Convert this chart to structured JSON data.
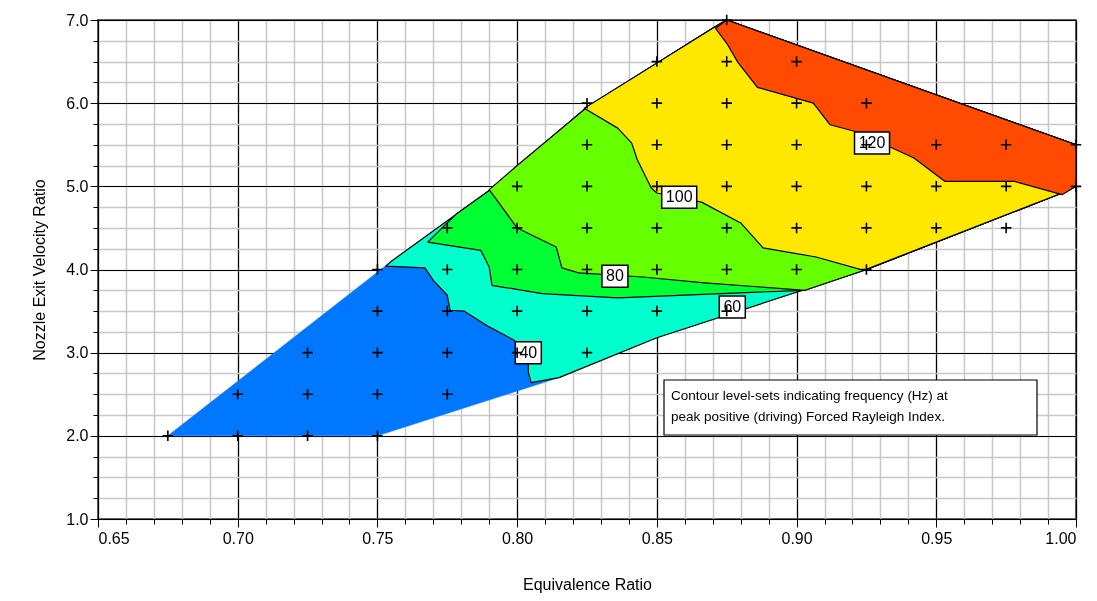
{
  "chart_data": {
    "type": "scatter",
    "xlabel": "Equivalence Ratio",
    "ylabel": "Nozzle Exit Velocity Ratio",
    "xlim": [
      0.65,
      1.0
    ],
    "ylim": [
      1,
      7
    ],
    "xticks": [
      0.65,
      {
        "value": 0.7,
        "label": "0.70"
      },
      0.75,
      {
        "value": 0.8,
        "label": "0.80"
      },
      0.85,
      {
        "value": 0.9,
        "label": "0.90"
      },
      0.95,
      {
        "value": 1,
        "label": "1.00"
      }
    ],
    "yticks": [
      {
        "value": 1,
        "label": "1.0"
      },
      {
        "value": 2,
        "label": "2.0"
      },
      {
        "value": 3,
        "label": "3.0"
      },
      {
        "value": 4,
        "label": "4.0"
      },
      {
        "value": 5,
        "label": "5.0"
      },
      {
        "value": 6,
        "label": "6.0"
      },
      {
        "value": 7,
        "label": "7.0"
      }
    ],
    "grid": true,
    "series": [
      {
        "type": "area",
        "color": "#0077ff",
        "x": [
          0.675,
          0.75,
          0.815,
          0.85,
          0.925,
          0.995,
          1.0,
          1.0,
          0.875,
          0.87,
          0.825,
          0.79,
          0.755,
          0.675
        ],
        "values": [
          2.0,
          2.0,
          2.7,
          3.18,
          4.0,
          4.92,
          5.0,
          5.5,
          7.0,
          6.9,
          5.95,
          4.95,
          4.1,
          2.0
        ]
      },
      {
        "type": "area",
        "color": "#00ffcc",
        "x": [
          0.753,
          0.767,
          0.77,
          0.775,
          0.776,
          0.781,
          0.79,
          0.799,
          0.804,
          0.804,
          0.805,
          0.815,
          0.85,
          0.925,
          0.995,
          1.0,
          1.0,
          0.875,
          0.87,
          0.825,
          0.79,
          0.755
        ],
        "values": [
          4.04,
          4.02,
          3.87,
          3.69,
          3.51,
          3.5,
          3.31,
          3.15,
          2.88,
          2.77,
          2.64,
          2.7,
          3.18,
          4.0,
          4.92,
          5.0,
          5.5,
          7.0,
          6.9,
          5.95,
          4.95,
          4.1
        ]
      },
      {
        "type": "area",
        "color": "#00ff33",
        "x": [
          0.778,
          0.768,
          0.787,
          0.79,
          0.791,
          0.809,
          0.836,
          0.903,
          0.925,
          0.995,
          1.0,
          1.0,
          0.875,
          0.87,
          0.825,
          0.79
        ],
        "values": [
          4.66,
          4.33,
          4.23,
          4.03,
          3.81,
          3.71,
          3.66,
          3.75,
          4.0,
          4.92,
          5.0,
          5.5,
          7.0,
          6.9,
          5.95,
          4.95
        ]
      },
      {
        "type": "area",
        "color": "#66ff00",
        "x": [
          0.8,
          0.79,
          0.8,
          0.814,
          0.816,
          0.822,
          0.845,
          0.867,
          0.903,
          0.925,
          0.995,
          1.0,
          1.0,
          0.875,
          0.87,
          0.825
        ],
        "values": [
          5.25,
          4.96,
          4.5,
          4.27,
          4.02,
          3.96,
          3.91,
          3.84,
          3.75,
          4.0,
          4.92,
          5.0,
          5.5,
          7.0,
          6.9,
          5.95
        ]
      },
      {
        "type": "area",
        "color": "#ffe800",
        "x": [
          0.824,
          0.836,
          0.841,
          0.843,
          0.848,
          0.85,
          0.866,
          0.88,
          0.888,
          0.907,
          0.924,
          0.995,
          1.0,
          1.0,
          0.875,
          0.87
        ],
        "values": [
          5.94,
          5.7,
          5.52,
          5.32,
          4.98,
          4.92,
          4.81,
          4.56,
          4.26,
          4.15,
          3.99,
          4.92,
          5.0,
          5.5,
          7.0,
          6.9
        ]
      },
      {
        "type": "area",
        "color": "#ff4a00",
        "x": [
          0.871,
          0.875,
          0.879,
          0.886,
          0.906,
          0.912,
          0.922,
          0.942,
          0.953,
          0.978,
          0.995,
          1.0,
          1.0,
          0.875
        ],
        "values": [
          6.9,
          6.72,
          6.49,
          6.19,
          6.0,
          5.74,
          5.65,
          5.34,
          5.06,
          5.06,
          4.9,
          5.0,
          5.5,
          7.0
        ]
      },
      {
        "color": "#000000",
        "marker": "cross",
        "x": [
          0.675,
          0.7,
          0.725,
          0.75,
          0.7,
          0.725,
          0.75,
          0.775,
          0.725,
          0.75,
          0.775,
          0.8,
          0.825,
          0.75,
          0.775,
          0.8,
          0.825,
          0.85,
          0.875,
          0.75,
          0.775,
          0.8,
          0.825,
          0.85,
          0.875,
          0.9,
          0.925,
          0.775,
          0.8,
          0.825,
          0.85,
          0.875,
          0.9,
          0.925,
          0.95,
          0.975,
          0.8,
          0.825,
          0.85,
          0.875,
          0.9,
          0.925,
          0.95,
          0.975,
          1.0,
          0.825,
          0.85,
          0.875,
          0.9,
          0.925,
          0.95,
          0.975,
          1.0,
          0.825,
          0.85,
          0.875,
          0.9,
          0.925,
          0.85,
          0.875,
          0.9,
          0.875
        ],
        "values": [
          2,
          2,
          2,
          2,
          2.5,
          2.5,
          2.5,
          2.5,
          3,
          3,
          3,
          3,
          3,
          3.5,
          3.5,
          3.5,
          3.5,
          3.5,
          3.5,
          4,
          4,
          4,
          4,
          4,
          4,
          4,
          4,
          4.5,
          4.5,
          4.5,
          4.5,
          4.5,
          4.5,
          4.5,
          4.5,
          4.5,
          5,
          5,
          5,
          5,
          5,
          5,
          5,
          5,
          5,
          5.5,
          5.5,
          5.5,
          5.5,
          5.5,
          5.5,
          5.5,
          5.5,
          6,
          6,
          6,
          6,
          6,
          6.5,
          6.5,
          6.5,
          7
        ]
      }
    ],
    "annotations": [
      {
        "text": "40",
        "x": 0.804,
        "y": 3.0
      },
      {
        "text": "60",
        "x": 0.877,
        "y": 3.55
      },
      {
        "text": "80",
        "x": 0.835,
        "y": 3.92
      },
      {
        "text": "100",
        "x": 0.858,
        "y": 4.87
      },
      {
        "text": "120",
        "x": 0.927,
        "y": 5.52
      },
      "Contour level-sets indicating frequency (Hz) at\npeak positive (driving) Forced Rayleigh Index."
    ]
  }
}
